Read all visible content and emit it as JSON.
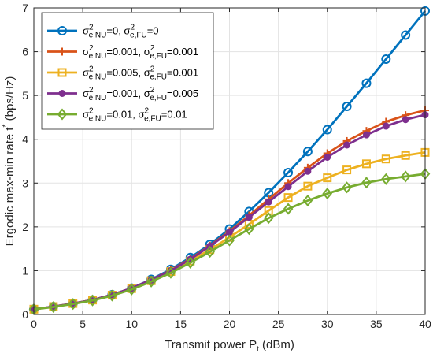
{
  "chart_data": {
    "type": "line",
    "xlabel": "Transmit power P",
    "xlabel_sub": "t",
    "xlabel_unit": " (dBm)",
    "ylabel": "Ergodic max-min rate t",
    "ylabel_sup": "*",
    "ylabel_unit": " (bps/Hz)",
    "xlim": [
      0,
      40
    ],
    "ylim": [
      0,
      7
    ],
    "xticks": [
      0,
      5,
      10,
      15,
      20,
      25,
      30,
      35,
      40
    ],
    "yticks": [
      0,
      1,
      2,
      3,
      4,
      5,
      6,
      7
    ],
    "grid": true,
    "legend_position": "top-left",
    "x": [
      0,
      2,
      4,
      6,
      8,
      10,
      12,
      14,
      16,
      18,
      20,
      22,
      24,
      26,
      28,
      30,
      32,
      34,
      36,
      38,
      40
    ],
    "series": [
      {
        "name": "σ²e,NU=0, σ²e,FU=0",
        "legend": [
          {
            "t": "σ"
          },
          {
            "t": "2",
            "sup": true
          },
          {
            "t": "e,NU",
            "sub": true
          },
          {
            "t": "=0, σ"
          },
          {
            "t": "2",
            "sup": true
          },
          {
            "t": "e,FU",
            "sub": true
          },
          {
            "t": "=0"
          }
        ],
        "color": "#0072BD",
        "marker": "circle",
        "values": [
          0.12,
          0.18,
          0.25,
          0.33,
          0.45,
          0.6,
          0.8,
          1.03,
          1.3,
          1.6,
          1.95,
          2.35,
          2.78,
          3.24,
          3.72,
          4.22,
          4.75,
          5.28,
          5.83,
          6.38,
          6.93
        ]
      },
      {
        "name": "σ²e,NU=0.001, σ²e,FU=0.001",
        "legend": [
          {
            "t": "σ"
          },
          {
            "t": "2",
            "sup": true
          },
          {
            "t": "e,NU",
            "sub": true
          },
          {
            "t": "=0.001, σ"
          },
          {
            "t": "2",
            "sup": true
          },
          {
            "t": "e,FU",
            "sub": true
          },
          {
            "t": "=0.001"
          }
        ],
        "color": "#D95319",
        "marker": "plus",
        "values": [
          0.12,
          0.18,
          0.25,
          0.33,
          0.45,
          0.6,
          0.79,
          1.01,
          1.27,
          1.57,
          1.9,
          2.26,
          2.63,
          3.0,
          3.35,
          3.68,
          3.96,
          4.19,
          4.4,
          4.55,
          4.66
        ]
      },
      {
        "name": "σ²e,NU=0.005, σ²e,FU=0.001",
        "legend": [
          {
            "t": "σ"
          },
          {
            "t": "2",
            "sup": true
          },
          {
            "t": "e,NU",
            "sub": true
          },
          {
            "t": "=0.005, σ"
          },
          {
            "t": "2",
            "sup": true
          },
          {
            "t": "e,FU",
            "sub": true
          },
          {
            "t": "=0.001"
          }
        ],
        "color": "#EDB120",
        "marker": "square",
        "values": [
          0.12,
          0.18,
          0.25,
          0.33,
          0.44,
          0.59,
          0.77,
          0.98,
          1.22,
          1.48,
          1.76,
          2.06,
          2.37,
          2.67,
          2.93,
          3.12,
          3.3,
          3.44,
          3.55,
          3.63,
          3.7
        ]
      },
      {
        "name": "σ²e,NU=0.001, σ²e,FU=0.005",
        "legend": [
          {
            "t": "σ"
          },
          {
            "t": "2",
            "sup": true
          },
          {
            "t": "e,NU",
            "sub": true
          },
          {
            "t": "=0.001, σ"
          },
          {
            "t": "2",
            "sup": true
          },
          {
            "t": "e,FU",
            "sub": true
          },
          {
            "t": "=0.005"
          }
        ],
        "color": "#7E2F8E",
        "marker": "dot",
        "values": [
          0.12,
          0.18,
          0.25,
          0.33,
          0.45,
          0.6,
          0.79,
          1.0,
          1.26,
          1.56,
          1.88,
          2.22,
          2.57,
          2.92,
          3.27,
          3.59,
          3.87,
          4.1,
          4.3,
          4.45,
          4.56
        ]
      },
      {
        "name": "σ²e,NU=0.01, σ²e,FU=0.01",
        "legend": [
          {
            "t": "σ"
          },
          {
            "t": "2",
            "sup": true
          },
          {
            "t": "e,NU",
            "sub": true
          },
          {
            "t": "=0.01, σ"
          },
          {
            "t": "2",
            "sup": true
          },
          {
            "t": "e,FU",
            "sub": true
          },
          {
            "t": "=0.01"
          }
        ],
        "color": "#77AC30",
        "marker": "diamond",
        "values": [
          0.12,
          0.17,
          0.24,
          0.32,
          0.43,
          0.57,
          0.75,
          0.95,
          1.18,
          1.43,
          1.69,
          1.95,
          2.2,
          2.41,
          2.6,
          2.76,
          2.9,
          3.01,
          3.09,
          3.15,
          3.21
        ]
      }
    ]
  }
}
